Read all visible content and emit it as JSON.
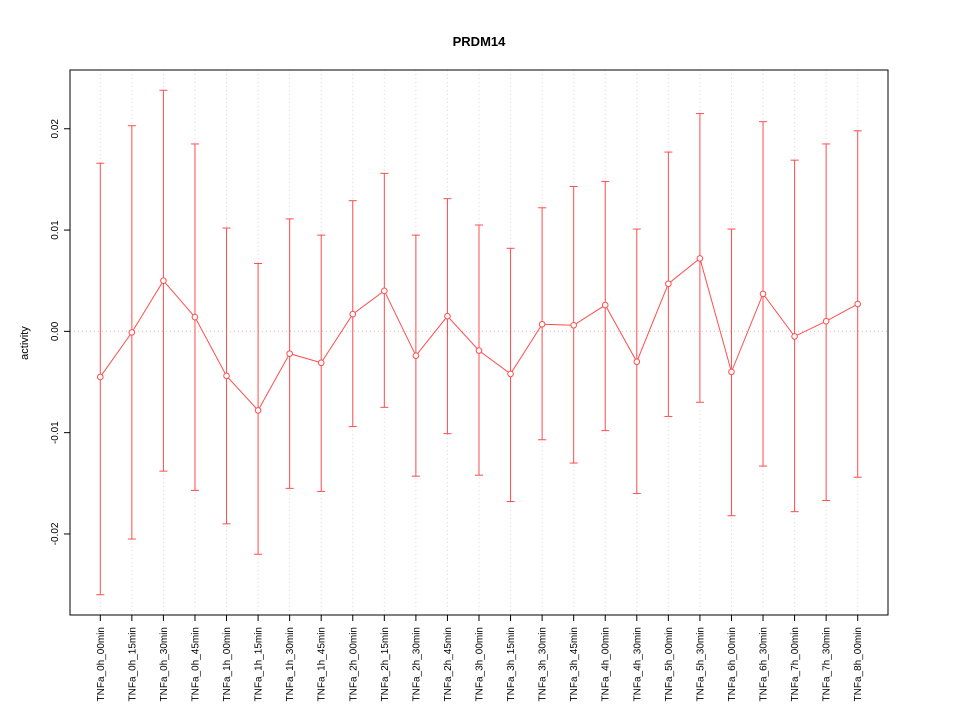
{
  "figure": {
    "title": "PRDM14",
    "ylabel": "activity"
  },
  "chart_data": {
    "type": "line",
    "title": "PRDM14",
    "xlabel": "",
    "ylabel": "activity",
    "ylim": [
      -0.028,
      0.0258
    ],
    "yticks": [
      -0.02,
      -0.01,
      0,
      0.01,
      0.02
    ],
    "ytick_labels": [
      "-0.02",
      "-0.01",
      "0.00",
      "0.01",
      "0.02"
    ],
    "grid": {
      "vertical": "dotted line at every category",
      "zero_line": "dotted horizontal line at y=0"
    },
    "legend": "none",
    "error_bars": true,
    "marker": "open-circle",
    "colors": {
      "series": "#ff4d4d",
      "grid": "#d9d9d9",
      "zero_line": "#f2baba",
      "axis": "#000000",
      "background": "#ffffff"
    },
    "categories": [
      "TNFa_0h_00min",
      "TNFa_0h_15min",
      "TNFa_0h_30min",
      "TNFa_0h_45min",
      "TNFa_1h_00min",
      "TNFa_1h_15min",
      "TNFa_1h_30min",
      "TNFa_1h_45min",
      "TNFa_2h_00min",
      "TNFa_2h_15min",
      "TNFa_2h_30min",
      "TNFa_2h_45min",
      "TNFa_3h_00min",
      "TNFa_3h_15min",
      "TNFa_3h_30min",
      "TNFa_3h_45min",
      "TNFa_4h_00min",
      "TNFa_4h_30min",
      "TNFa_5h_00min",
      "TNFa_5h_30min",
      "TNFa_6h_00min",
      "TNFa_6h_30min",
      "TNFa_7h_00min",
      "TNFa_7h_30min",
      "TNFa_8h_00min"
    ],
    "series": [
      {
        "name": "activity",
        "values": [
          -0.0045,
          -0.0001,
          0.005,
          0.0014,
          -0.0044,
          -0.0078,
          -0.0022,
          -0.0031,
          0.0017,
          0.004,
          -0.0024,
          0.0015,
          -0.0019,
          -0.0042,
          0.0007,
          0.0006,
          0.0026,
          -0.003,
          0.0047,
          0.0072,
          -0.004,
          0.0037,
          -0.0005,
          0.001,
          0.0027
        ],
        "upper": [
          0.0166,
          0.0203,
          0.0238,
          0.0185,
          0.0102,
          0.0067,
          0.0111,
          0.0095,
          0.0129,
          0.0156,
          0.0095,
          0.0131,
          0.0105,
          0.0082,
          0.0122,
          0.0143,
          0.0148,
          0.0101,
          0.0177,
          0.0215,
          0.0101,
          0.0207,
          0.0169,
          0.0185,
          0.0198
        ],
        "lower": [
          -0.026,
          -0.0205,
          -0.0138,
          -0.0157,
          -0.019,
          -0.022,
          -0.0155,
          -0.0158,
          -0.0094,
          -0.0075,
          -0.0143,
          -0.0101,
          -0.0142,
          -0.0168,
          -0.0107,
          -0.013,
          -0.0098,
          -0.016,
          -0.0084,
          -0.007,
          -0.0182,
          -0.0133,
          -0.0178,
          -0.0167,
          -0.0144
        ]
      }
    ]
  }
}
